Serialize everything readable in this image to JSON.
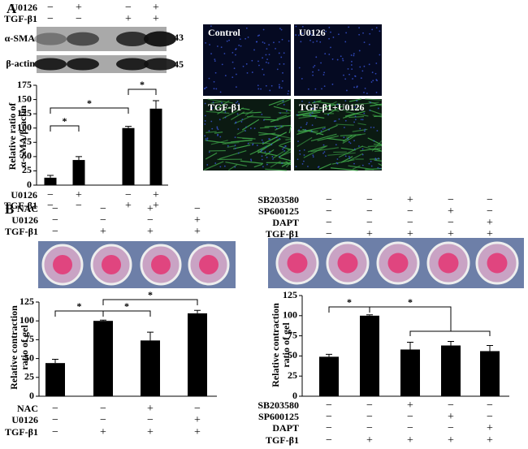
{
  "figure": {
    "panel_labels": [
      "A",
      "B"
    ],
    "blot": {
      "labels": [
        "α-SMA",
        "β-actin"
      ],
      "sizes": [
        43,
        45
      ]
    },
    "micrographs": [
      "Control",
      "U0126",
      "TGF-β1",
      "TGF-β1+U0126"
    ]
  },
  "chart_data": [
    {
      "type": "bar",
      "ylabel": [
        "Relative ratio of",
        "α-SMA/β-actin"
      ],
      "values": [
        13,
        44,
        100,
        134
      ],
      "errors": [
        4,
        6,
        3,
        14
      ],
      "color": "#000000",
      "ylim": [
        0,
        175
      ],
      "yticks": [
        0,
        25,
        50,
        75,
        100,
        125,
        150,
        175
      ],
      "treatments": [
        {
          "name": "U0126",
          "signs": [
            "−",
            "+",
            "−",
            "+"
          ]
        },
        {
          "name": "TGF-β1",
          "signs": [
            "−",
            "−",
            "+",
            "+"
          ]
        }
      ],
      "annotations": [
        "*",
        "*",
        "*"
      ]
    },
    {
      "type": "bar",
      "ylabel": [
        "Relative contraction",
        "ratio of gel"
      ],
      "values": [
        44,
        100,
        74,
        110
      ],
      "errors": [
        5,
        1,
        11,
        4
      ],
      "color": "#000000",
      "ylim": [
        0,
        125
      ],
      "yticks": [
        0,
        25,
        50,
        75,
        100,
        125
      ],
      "treatments": [
        {
          "name": "NAC",
          "signs": [
            "−",
            "−",
            "+",
            "−"
          ]
        },
        {
          "name": "U0126",
          "signs": [
            "−",
            "−",
            "−",
            "+"
          ]
        },
        {
          "name": "TGF-β1",
          "signs": [
            "−",
            "+",
            "+",
            "+"
          ]
        }
      ],
      "annotations": [
        "*",
        "*",
        "*"
      ]
    },
    {
      "type": "bar",
      "ylabel": [
        "Relative contraction",
        "ratio of gel"
      ],
      "values": [
        49,
        100,
        58,
        63,
        56
      ],
      "errors": [
        3,
        1,
        9,
        5,
        7
      ],
      "color": "#000000",
      "ylim": [
        0,
        125
      ],
      "yticks": [
        0,
        25,
        50,
        75,
        100,
        125
      ],
      "treatments": [
        {
          "name": "SB203580",
          "signs": [
            "−",
            "−",
            "+",
            "−",
            "−"
          ]
        },
        {
          "name": "SP600125",
          "signs": [
            "−",
            "−",
            "−",
            "+",
            "−"
          ]
        },
        {
          "name": "DAPT",
          "signs": [
            "−",
            "−",
            "−",
            "−",
            "+"
          ]
        },
        {
          "name": "TGF-β1",
          "signs": [
            "−",
            "+",
            "+",
            "+",
            "+"
          ]
        }
      ],
      "annotations": [
        "*",
        "*"
      ]
    }
  ]
}
